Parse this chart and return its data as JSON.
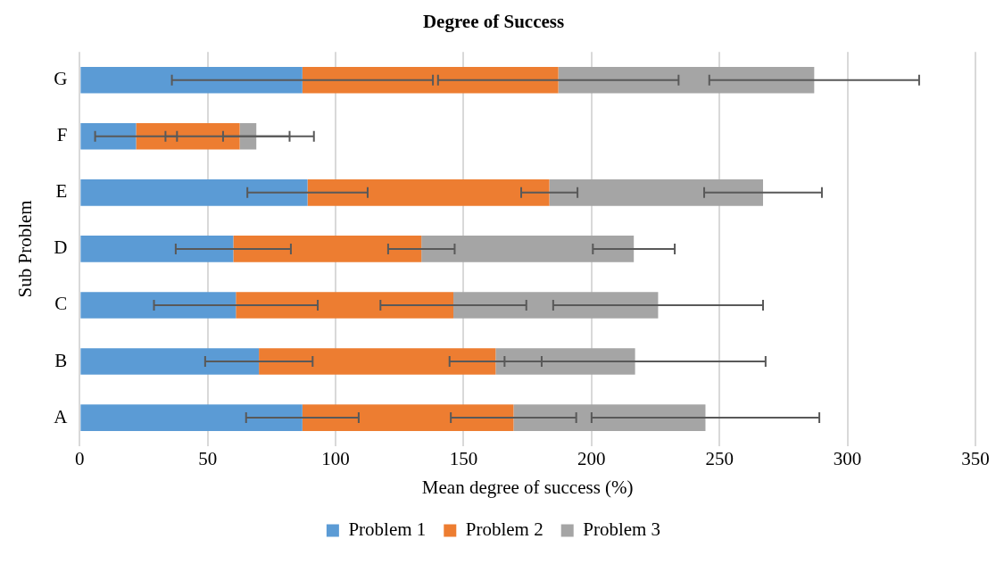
{
  "chart_data": {
    "type": "bar",
    "orientation": "horizontal",
    "stacked": true,
    "title": "Degree of Success",
    "xlabel": "Mean degree of success (%)",
    "ylabel": "Sub Problem",
    "categories": [
      "G",
      "F",
      "E",
      "D",
      "C",
      "B",
      "A"
    ],
    "series": [
      {
        "name": "Problem 1",
        "color": "#5b9bd5",
        "values": [
          87,
          22,
          89,
          60,
          61,
          70,
          87
        ],
        "errors": [
          51,
          16,
          23.5,
          22.5,
          32,
          21,
          22
        ]
      },
      {
        "name": "Problem 2",
        "color": "#ed7d31",
        "values": [
          100,
          40.5,
          94.5,
          73.5,
          85,
          92.5,
          82.5
        ],
        "errors": [
          47,
          29,
          11,
          13,
          28.5,
          18,
          24.5
        ]
      },
      {
        "name": "Problem 3",
        "color": "#a5a5a5",
        "values": [
          100,
          6.5,
          83.5,
          83,
          80,
          54.5,
          75
        ],
        "errors": [
          41,
          13,
          23,
          16,
          41,
          51,
          44.5
        ]
      }
    ],
    "xlim": [
      0,
      350
    ],
    "xticks": [
      0,
      50,
      100,
      150,
      200,
      250,
      300,
      350
    ],
    "grid": "x",
    "legend": "bottom"
  }
}
